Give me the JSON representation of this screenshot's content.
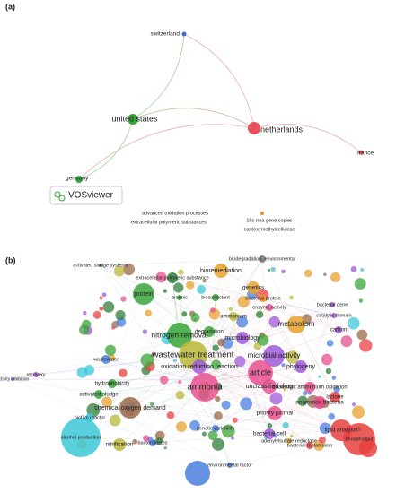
{
  "panel_a": {
    "label": "(a)",
    "logo": "VOSviewer",
    "nodes": [
      {
        "label": "switzerland"
      },
      {
        "label": "united states"
      },
      {
        "label": "netherlands"
      },
      {
        "label": "germany"
      },
      {
        "label": "france"
      }
    ],
    "notes": [
      "advanced oxidation processes",
      "extracellular polymeric substances",
      "16s rrna gene copies",
      "carboxymethylcellulose"
    ]
  },
  "panel_b": {
    "label": "(b)",
    "nodes": [
      {
        "label": "activated sludge systems"
      },
      {
        "label": "extracellular polymeric substance"
      },
      {
        "label": "bioremediation"
      },
      {
        "label": "biodegradation, environmental"
      },
      {
        "label": "genetics"
      },
      {
        "label": "bacterial protein"
      },
      {
        "label": "bacterial gene"
      },
      {
        "label": "catalytic domain"
      },
      {
        "label": "protein"
      },
      {
        "label": "biosurfactant"
      },
      {
        "label": "arsenic"
      },
      {
        "label": "ammonium"
      },
      {
        "label": "enzyme activity"
      },
      {
        "label": "degradation"
      },
      {
        "label": "microbiology"
      },
      {
        "label": "metabolism"
      },
      {
        "label": "carbon"
      },
      {
        "label": "nitrogen removal"
      },
      {
        "label": "wastewater treatment"
      },
      {
        "label": "microbial activity"
      },
      {
        "label": "oxidation reduction reaction"
      },
      {
        "label": "phylogeny"
      },
      {
        "label": "article"
      },
      {
        "label": "unclassified drug"
      },
      {
        "label": "hydrophobicity"
      },
      {
        "label": "activated sludge"
      },
      {
        "label": "chemical oxygen demand"
      },
      {
        "label": "anammox bacteria"
      },
      {
        "label": "priority journal"
      },
      {
        "label": "anaerobic ammonium oxidation"
      },
      {
        "label": "bacterial cell"
      },
      {
        "label": "nitrification"
      },
      {
        "label": "bacteroidetes"
      },
      {
        "label": "adenylylsulfate reductase"
      },
      {
        "label": "environmental factor"
      },
      {
        "label": "recovery"
      },
      {
        "label": "activity inhibition"
      },
      {
        "label": "wastewater"
      },
      {
        "label": "biofilm reactor"
      },
      {
        "label": "alcohol production"
      },
      {
        "label": "lactone"
      },
      {
        "label": "lipid analysis"
      },
      {
        "label": "phospholipid"
      },
      {
        "label": "bacterial metabolism"
      },
      {
        "label": "genetic variability"
      },
      {
        "label": "ammonia"
      }
    ]
  }
}
